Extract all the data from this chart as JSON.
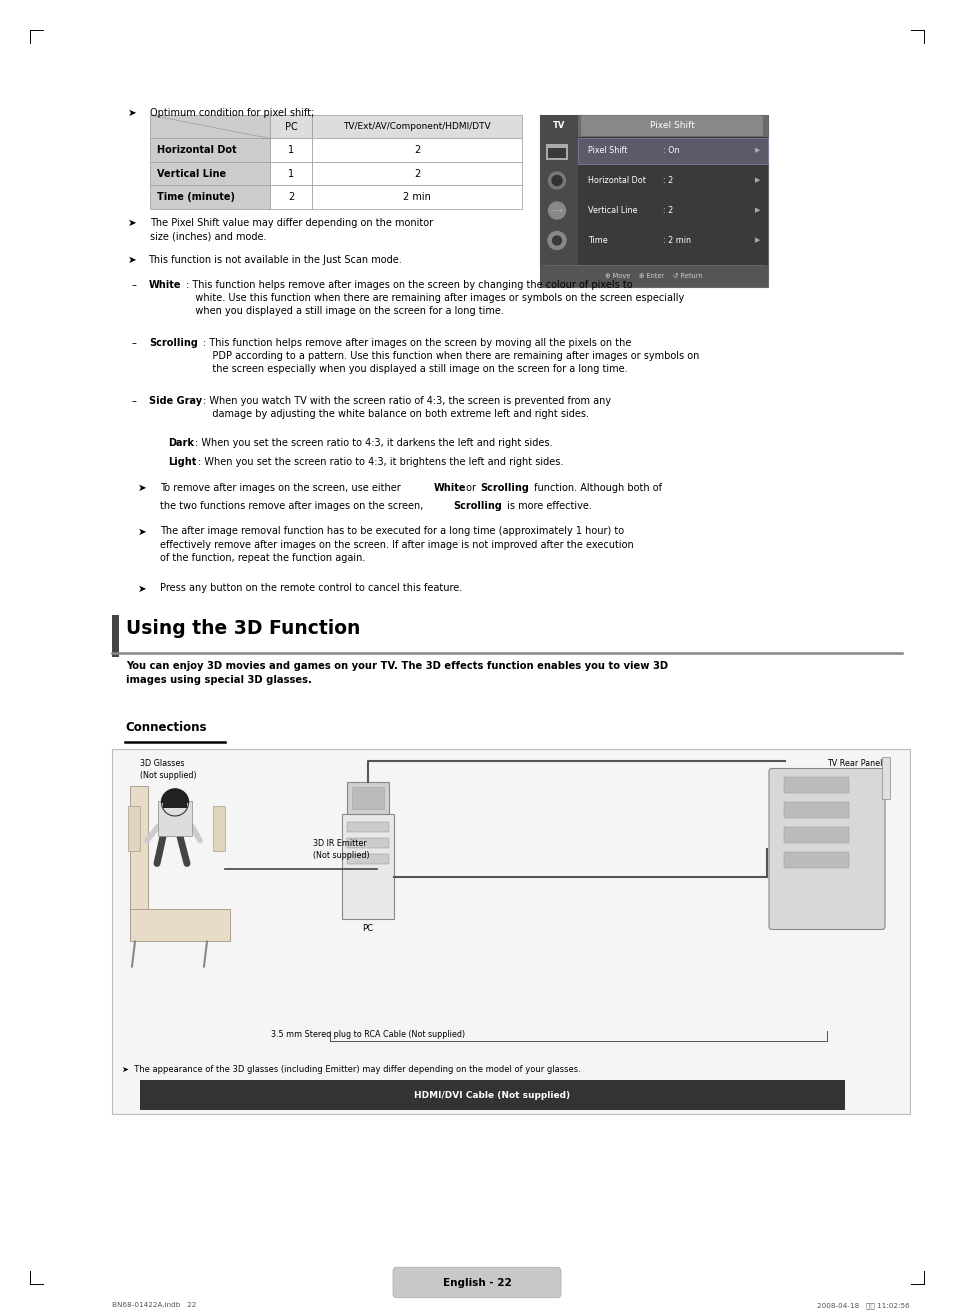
{
  "page_bg": "#ffffff",
  "page_width": 9.54,
  "page_height": 13.14,
  "footer_text": "English - 22",
  "footer_file": "BN68-01422A.indb   22",
  "footer_date": "2008-04-18   오전 11:02:56",
  "section_heading": "Using the 3D Function",
  "section_subtext": "You can enjoy 3D movies and games on your TV. The 3D effects function enables you to view 3D\nimages using special 3D glasses.",
  "connections_label": "Connections",
  "table_rows": [
    [
      "Horizontal Dot",
      "1",
      "2"
    ],
    [
      "Vertical Line",
      "1",
      "2"
    ],
    [
      "Time (minute)",
      "2",
      "2 min"
    ]
  ],
  "tv_panel_items": [
    [
      "Pixel Shift",
      ": On"
    ],
    [
      "Horizontal Dot",
      ": 2"
    ],
    [
      "Vertical Line",
      ": 2"
    ],
    [
      "Time",
      ": 2 min"
    ]
  ]
}
